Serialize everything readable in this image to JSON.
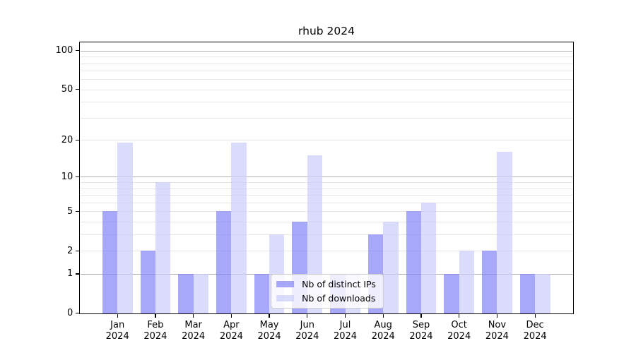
{
  "title": "rhub 2024",
  "chart_data": {
    "type": "bar",
    "title": "rhub 2024",
    "categories": [
      "Jan",
      "Feb",
      "Mar",
      "Apr",
      "May",
      "Jun",
      "Jul",
      "Aug",
      "Sep",
      "Oct",
      "Nov",
      "Dec"
    ],
    "category_year": "2024",
    "series": [
      {
        "name": "Nb of distinct IPs",
        "color": "#a6a6f3",
        "fill_rgba": "rgba(134,134,248,0.72)",
        "values": [
          5,
          2,
          1,
          5,
          1,
          4,
          1,
          3,
          5,
          1,
          2,
          1
        ]
      },
      {
        "name": "Nb of downloads",
        "color": "#dbdbf8",
        "fill_rgba": "rgba(205,205,250,0.72)",
        "values": [
          19,
          9,
          1,
          19,
          3,
          15,
          1,
          4,
          6,
          2,
          16,
          1
        ]
      }
    ],
    "xlabel": "",
    "ylabel": "",
    "y_scale": "log1p",
    "ylim": [
      0,
      114
    ],
    "y_tick_labels": [
      0,
      1,
      2,
      5,
      10,
      20,
      50,
      100
    ],
    "major_gridlines": [
      1,
      10,
      100
    ],
    "minor_gridlines": [
      2,
      3,
      4,
      5,
      6,
      7,
      8,
      9,
      20,
      30,
      40,
      50,
      60,
      70,
      80,
      90
    ],
    "grid": true,
    "legend_position": "lower center"
  },
  "colors": {
    "background": "#ffffff",
    "bar_distinct_ips": "#a6a6f3",
    "bar_downloads": "#dbdbf8",
    "grid_major": "#b0b0b0",
    "grid_minor": "#e7e7e7",
    "axis": "#000000",
    "legend_border": "#cccccc"
  }
}
